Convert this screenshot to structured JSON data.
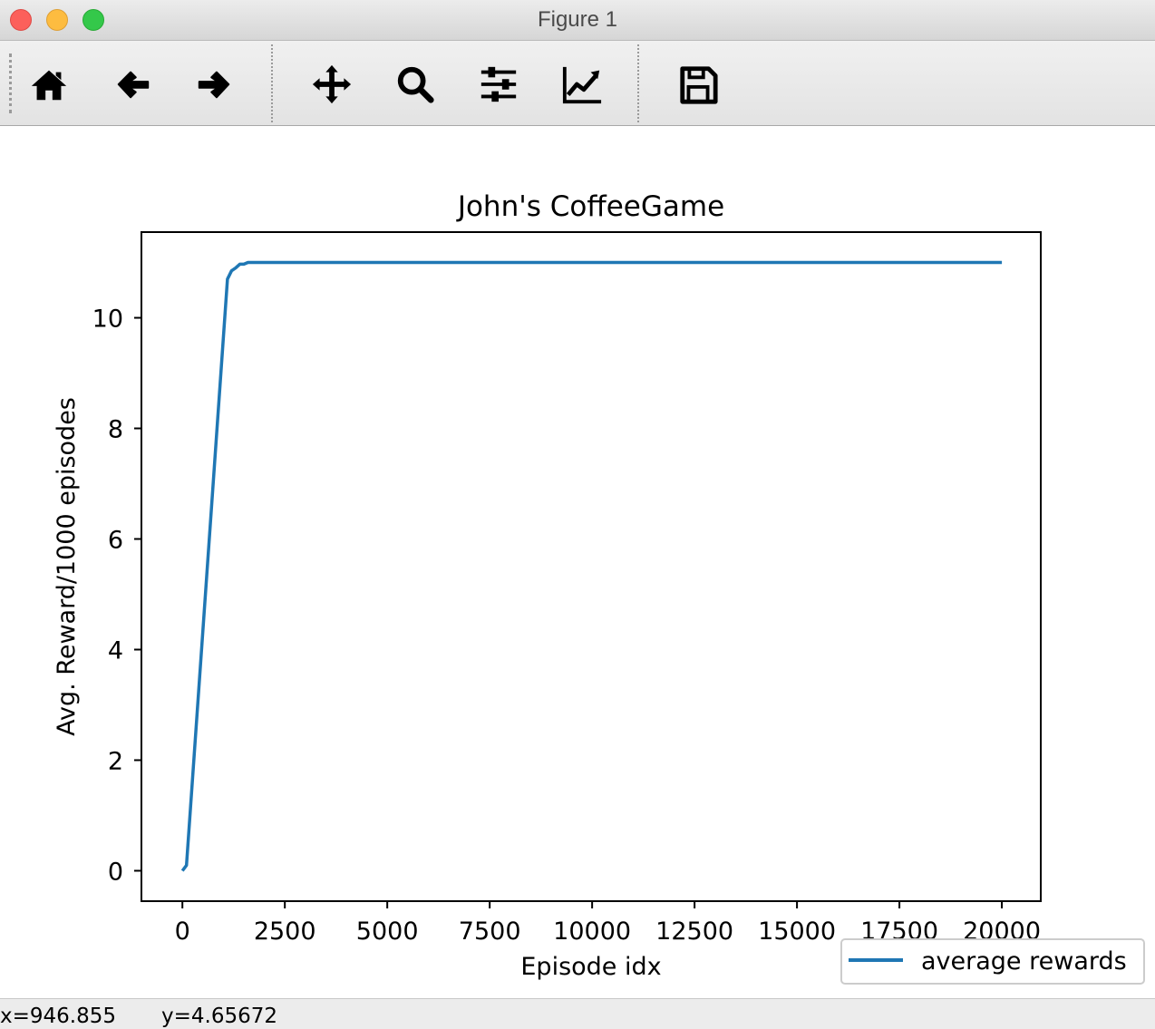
{
  "window": {
    "title": "Figure 1"
  },
  "toolbar": {
    "tools": [
      {
        "name": "home",
        "icon": "home-icon"
      },
      {
        "name": "back",
        "icon": "arrow-left-icon"
      },
      {
        "name": "forward",
        "icon": "arrow-right-icon"
      },
      {
        "name": "pan",
        "icon": "move-arrows-icon"
      },
      {
        "name": "zoom",
        "icon": "magnifier-icon"
      },
      {
        "name": "subplots",
        "icon": "sliders-icon"
      },
      {
        "name": "edit-axis",
        "icon": "line-chart-icon"
      },
      {
        "name": "save",
        "icon": "floppy-disk-icon"
      }
    ]
  },
  "status": {
    "x_readout": "x=946.855",
    "y_readout": "y=4.65672"
  },
  "chart_data": {
    "type": "line",
    "title": "John's CoffeeGame",
    "xlabel": "Episode idx",
    "ylabel": "Avg. Reward/1000 episodes",
    "xlim": [
      -1000,
      20950
    ],
    "ylim": [
      -0.55,
      11.55
    ],
    "xticks": [
      0,
      2500,
      5000,
      7500,
      10000,
      12500,
      15000,
      17500,
      20000
    ],
    "yticks": [
      0,
      2,
      4,
      6,
      8,
      10
    ],
    "grid": false,
    "legend_position": "lower-right, outside axes",
    "series": [
      {
        "name": "average rewards",
        "color": "#1f77b4",
        "x": [
          0,
          100,
          1100,
          1200,
          1300,
          1400,
          1500,
          1600,
          1700,
          20000
        ],
        "y": [
          0,
          0.1,
          10.7,
          10.85,
          10.9,
          10.97,
          10.97,
          11.0,
          11.0,
          11.0
        ]
      }
    ]
  }
}
